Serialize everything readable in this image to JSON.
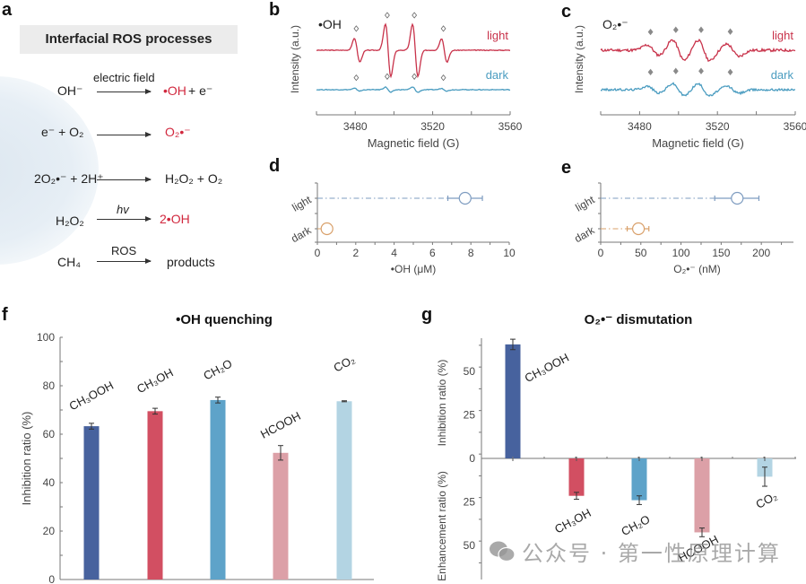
{
  "panel_labels": [
    "a",
    "b",
    "c",
    "d",
    "e",
    "f",
    "g"
  ],
  "panel_a": {
    "title": "Interfacial ROS processes",
    "reactions": [
      {
        "reactants": "OH⁻",
        "condition": "electric field",
        "products_highlight": "•OH",
        "products_rest": " +  e⁻"
      },
      {
        "reactants": "e⁻  +  O₂",
        "condition": "",
        "products_highlight": "O₂•⁻",
        "products_rest": ""
      },
      {
        "reactants": "2O₂•⁻ + 2H⁺",
        "condition": "",
        "products_highlight": "",
        "products_rest": "H₂O₂ + O₂"
      },
      {
        "reactants": "H₂O₂",
        "condition": "hv",
        "products_highlight": "2•OH",
        "products_rest": ""
      },
      {
        "reactants": "CH₄",
        "condition": "ROS",
        "products_highlight": "",
        "products_rest": "products"
      }
    ]
  },
  "colors": {
    "light": "#c8324a",
    "dark": "#4a9cc0",
    "marker_light": "#7e9cc0",
    "marker_dark": "#d9a06a",
    "bar_CH3OOH": "#47629e",
    "bar_CH3OH": "#d24f62",
    "bar_CH2O": "#5ea3c9",
    "bar_HCOOH": "#dca0a7",
    "bar_CO2": "#b3d4e3",
    "highlight_text": "#d1283e"
  },
  "chart_data": [
    {
      "id": "b",
      "type": "line",
      "title": "•OH",
      "xlabel": "Magnetic field (G)",
      "ylabel": "Intensity (a.u.)",
      "xlim": [
        3460,
        3560
      ],
      "xticks": [
        3480,
        3520,
        3560
      ],
      "series": [
        {
          "name": "light",
          "peaks_G": [
            3481,
            3497,
            3511,
            3526
          ],
          "relative_amplitudes": [
            0.45,
            1.0,
            1.0,
            0.45
          ]
        },
        {
          "name": "dark",
          "peaks_G": [
            3481,
            3497,
            3511,
            3526
          ],
          "relative_amplitudes": [
            0.05,
            0.1,
            0.1,
            0.05
          ]
        }
      ],
      "marker": "open-diamond"
    },
    {
      "id": "c",
      "type": "line",
      "title": "O₂•⁻",
      "xlabel": "Magnetic field (G)",
      "ylabel": "Intensity (a.u.)",
      "xlim": [
        3460,
        3560
      ],
      "xticks": [
        3480,
        3520,
        3560
      ],
      "series": [
        {
          "name": "light",
          "peaks_G": [
            3487,
            3500,
            3513,
            3528
          ],
          "relative_amplitudes": [
            0.3,
            0.6,
            0.6,
            0.35
          ]
        },
        {
          "name": "dark",
          "peaks_G": [
            3487,
            3500,
            3513,
            3528
          ],
          "relative_amplitudes": [
            0.2,
            0.35,
            0.35,
            0.2
          ]
        }
      ],
      "marker": "filled-diamond"
    },
    {
      "id": "d",
      "type": "scatter",
      "xlabel": "•OH (μM)",
      "categories": [
        "light",
        "dark"
      ],
      "values": [
        7.7,
        0.5
      ],
      "errors": [
        [
          6.8,
          8.6
        ],
        [
          0.5,
          0.5
        ]
      ],
      "xlim": [
        0,
        10
      ],
      "xticks": [
        0,
        2,
        4,
        6,
        8,
        10
      ]
    },
    {
      "id": "e",
      "type": "scatter",
      "xlabel": "O₂•⁻ (nM)",
      "categories": [
        "light",
        "dark"
      ],
      "values": [
        170,
        47
      ],
      "errors": [
        [
          142,
          197
        ],
        [
          33,
          60
        ]
      ],
      "xlim": [
        0,
        240
      ],
      "xticks": [
        0,
        50,
        100,
        150,
        200
      ]
    },
    {
      "id": "f",
      "type": "bar",
      "title": "•OH quenching",
      "ylabel": "Inhibition ratio (%)",
      "categories": [
        "CH₃OOH",
        "CH₃OH",
        "CH₂O",
        "HCOOH",
        "CO₂"
      ],
      "values": [
        63.3,
        69.5,
        74.1,
        52.3,
        73.6
      ],
      "errors": [
        1.2,
        1.2,
        1.2,
        3.0,
        0.2
      ],
      "ylim": [
        0,
        100
      ],
      "yticks": [
        0,
        20,
        40,
        60,
        80,
        100
      ]
    },
    {
      "id": "g",
      "type": "bar",
      "title": "O₂•⁻ dismutation",
      "ylabel_top": "Inhibition ratio (%)",
      "ylabel_bottom": "Enhancement ratio (%)",
      "categories": [
        "CH₃OOH",
        "CH₃OH",
        "CH₂O",
        "HCOOH",
        "CO₂"
      ],
      "values": [
        65.5,
        -21.5,
        -24.0,
        -42.5,
        -10.5
      ],
      "errors": [
        3.0,
        2.0,
        2.5,
        2.5,
        5.5
      ],
      "ylim": [
        -60,
        70
      ],
      "yticks": [
        50,
        25,
        0,
        25,
        50
      ],
      "ytick_values": [
        50,
        25,
        0,
        -25,
        -50
      ]
    }
  ],
  "watermark": "公众号 · 第一性原理计算"
}
